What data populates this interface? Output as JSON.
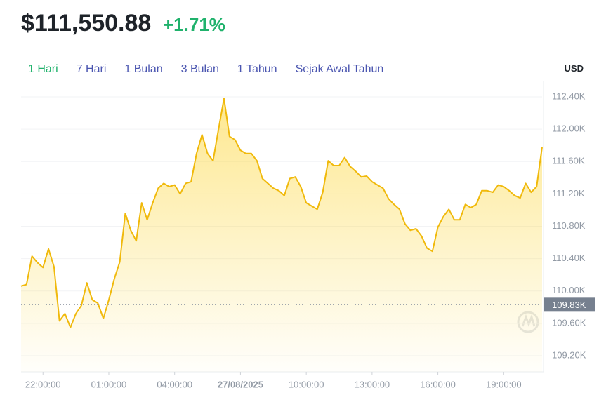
{
  "header": {
    "price": "$111,550.88",
    "change": "+1.71%"
  },
  "tabs": [
    "1 Hari",
    "7 Hari",
    "1 Bulan",
    "3 Bulan",
    "1 Tahun",
    "Sejak Awal Tahun"
  ],
  "active_tab": 0,
  "currency": "USD",
  "chart_data": {
    "type": "area",
    "color": "#f0b90b",
    "values": [
      110060,
      110080,
      110430,
      110350,
      110290,
      110520,
      110300,
      109630,
      109720,
      109550,
      109720,
      109820,
      110100,
      109890,
      109850,
      109660,
      109890,
      110150,
      110360,
      110960,
      110750,
      110620,
      111090,
      110880,
      111090,
      111270,
      111330,
      111290,
      111310,
      111200,
      111330,
      111350,
      111700,
      111930,
      111700,
      111610,
      112000,
      112380,
      111910,
      111870,
      111740,
      111700,
      111700,
      111610,
      111390,
      111330,
      111270,
      111240,
      111180,
      111390,
      111410,
      111290,
      111090,
      111050,
      111010,
      111220,
      111610,
      111550,
      111550,
      111650,
      111540,
      111480,
      111410,
      111420,
      111350,
      111310,
      111270,
      111140,
      111070,
      111010,
      110830,
      110750,
      110770,
      110680,
      110530,
      110490,
      110790,
      110920,
      111010,
      110880,
      110880,
      111070,
      111030,
      111070,
      111240,
      111240,
      111220,
      111310,
      111290,
      111240,
      111180,
      111150,
      111330,
      111220,
      111290,
      111780
    ],
    "xlim": [
      0,
      95
    ],
    "xticks": [
      {
        "value": 4,
        "label": "22:00:00"
      },
      {
        "value": 16,
        "label": "01:00:00"
      },
      {
        "value": 28,
        "label": "04:00:00"
      },
      {
        "value": 40,
        "label": "27/08/2025"
      },
      {
        "value": 52,
        "label": "10:00:00"
      },
      {
        "value": 64,
        "label": "13:00:00"
      },
      {
        "value": 76,
        "label": "16:00:00"
      },
      {
        "value": 88,
        "label": "19:00:00"
      }
    ],
    "ylim": [
      109000,
      112600
    ],
    "yticks": [
      {
        "value": 109200,
        "label": "109.20K"
      },
      {
        "value": 109600,
        "label": "109.60K"
      },
      {
        "value": 110000,
        "label": "110.00K"
      },
      {
        "value": 110400,
        "label": "110.40K"
      },
      {
        "value": 110800,
        "label": "110.80K"
      },
      {
        "value": 111200,
        "label": "111.20K"
      },
      {
        "value": 111600,
        "label": "111.60K"
      },
      {
        "value": 112000,
        "label": "112.00K"
      },
      {
        "value": 112400,
        "label": "112.40K"
      }
    ],
    "reference_line": {
      "value": 109830,
      "label": "109.83K"
    },
    "grid": true
  }
}
